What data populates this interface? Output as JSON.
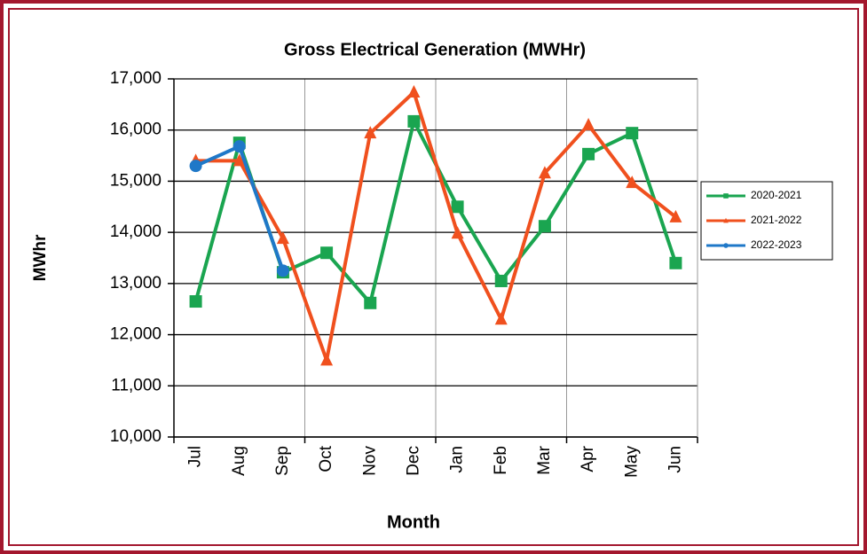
{
  "chart_data": {
    "type": "line",
    "title": "Gross Electrical Generation (MWHr)",
    "x_label": "Month",
    "y_label": "MWhr",
    "categories": [
      "Jul",
      "Aug",
      "Sep",
      "Oct",
      "Nov",
      "Dec",
      "Jan",
      "Feb",
      "Mar",
      "Apr",
      "May",
      "Jun"
    ],
    "series": [
      {
        "name": "2020-2021",
        "color": "#1aa550",
        "marker": "square",
        "values": [
          12650,
          15750,
          13220,
          13600,
          12620,
          16170,
          14500,
          13050,
          14120,
          15530,
          15940,
          13400
        ]
      },
      {
        "name": "2021-2022",
        "color": "#f0501e",
        "marker": "triangle",
        "values": [
          15400,
          15400,
          13880,
          11500,
          15940,
          16740,
          13980,
          12300,
          15160,
          16100,
          14970,
          14300
        ]
      },
      {
        "name": "2022-2023",
        "color": "#1f78c8",
        "marker": "circle",
        "values": [
          15300,
          15680,
          13250,
          null,
          null,
          null,
          null,
          null,
          null,
          null,
          null,
          null
        ]
      }
    ],
    "ylim": [
      10000,
      17000
    ],
    "yticks": [
      {
        "value": 10000,
        "label": "10,000"
      },
      {
        "value": 11000,
        "label": "11,000"
      },
      {
        "value": 12000,
        "label": "12,000"
      },
      {
        "value": 13000,
        "label": "13,000"
      },
      {
        "value": 14000,
        "label": "14,000"
      },
      {
        "value": 15000,
        "label": "15,000"
      },
      {
        "value": 16000,
        "label": "16,000"
      },
      {
        "value": 17000,
        "label": "17,000"
      }
    ],
    "grid": true,
    "legend": "right"
  }
}
